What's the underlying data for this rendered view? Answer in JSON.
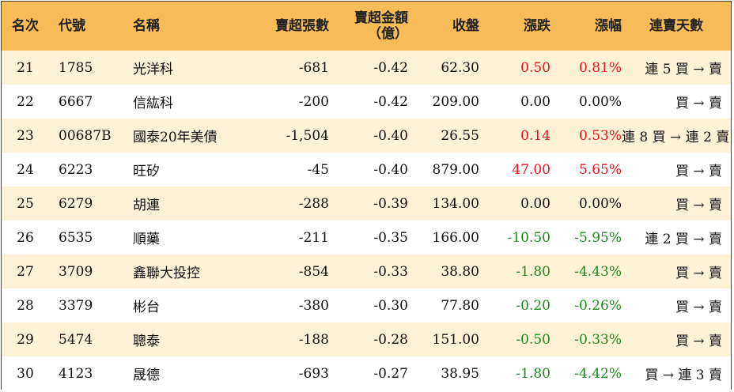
{
  "columns": {
    "rank": "名次",
    "code": "代號",
    "name": "名稱",
    "sell_lots": "賣超張數",
    "sell_amount_line1": "賣超金額",
    "sell_amount_line2": "（億）",
    "close": "收盤",
    "change": "漲跌",
    "pct": "漲幅",
    "streak": "連賣天數"
  },
  "colors": {
    "header_bg": "#f7bb57",
    "stripe_bg": "#fdf1d6",
    "up": "#e8121e",
    "down": "#1e8a1e"
  },
  "rows": [
    {
      "rank": "21",
      "code": "1785",
      "name": "光洋科",
      "sell_lots": "-681",
      "sell_amount": "-0.42",
      "close": "62.30",
      "change": "0.50",
      "pct": "0.81%",
      "dir": "up",
      "streak": "連 5 買 → 賣"
    },
    {
      "rank": "22",
      "code": "6667",
      "name": "信紘科",
      "sell_lots": "-200",
      "sell_amount": "-0.42",
      "close": "209.00",
      "change": "0.00",
      "pct": "0.00%",
      "dir": "flat",
      "streak": "買 → 賣"
    },
    {
      "rank": "23",
      "code": "00687B",
      "name": "國泰20年美債",
      "sell_lots": "-1,504",
      "sell_amount": "-0.40",
      "close": "26.55",
      "change": "0.14",
      "pct": "0.53%",
      "dir": "up",
      "streak": "連 8 買 → 連 2 賣"
    },
    {
      "rank": "24",
      "code": "6223",
      "name": "旺矽",
      "sell_lots": "-45",
      "sell_amount": "-0.40",
      "close": "879.00",
      "change": "47.00",
      "pct": "5.65%",
      "dir": "up",
      "streak": "買 → 賣"
    },
    {
      "rank": "25",
      "code": "6279",
      "name": "胡連",
      "sell_lots": "-288",
      "sell_amount": "-0.39",
      "close": "134.00",
      "change": "0.00",
      "pct": "0.00%",
      "dir": "flat",
      "streak": "買 → 賣"
    },
    {
      "rank": "26",
      "code": "6535",
      "name": "順藥",
      "sell_lots": "-211",
      "sell_amount": "-0.35",
      "close": "166.00",
      "change": "-10.50",
      "pct": "-5.95%",
      "dir": "down",
      "streak": "連 2 買 → 賣"
    },
    {
      "rank": "27",
      "code": "3709",
      "name": "鑫聯大投控",
      "sell_lots": "-854",
      "sell_amount": "-0.33",
      "close": "38.80",
      "change": "-1.80",
      "pct": "-4.43%",
      "dir": "down",
      "streak": "買 → 賣"
    },
    {
      "rank": "28",
      "code": "3379",
      "name": "彬台",
      "sell_lots": "-380",
      "sell_amount": "-0.30",
      "close": "77.80",
      "change": "-0.20",
      "pct": "-0.26%",
      "dir": "down",
      "streak": "買 → 賣"
    },
    {
      "rank": "29",
      "code": "5474",
      "name": "聰泰",
      "sell_lots": "-188",
      "sell_amount": "-0.28",
      "close": "151.00",
      "change": "-0.50",
      "pct": "-0.33%",
      "dir": "down",
      "streak": "買 → 賣"
    },
    {
      "rank": "30",
      "code": "4123",
      "name": "晟德",
      "sell_lots": "-693",
      "sell_amount": "-0.27",
      "close": "38.95",
      "change": "-1.80",
      "pct": "-4.42%",
      "dir": "down",
      "streak": "買 → 連 3 賣"
    }
  ]
}
